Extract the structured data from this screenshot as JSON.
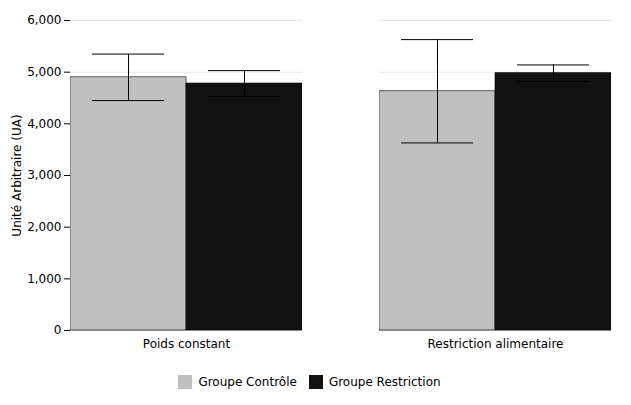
{
  "chart_data": {
    "type": "bar",
    "categories": [
      "Poids constant",
      "Restriction alimentaire"
    ],
    "series": [
      {
        "name": "Groupe Contrôle",
        "color": "#c0c0c0",
        "values": [
          4900,
          4630
        ],
        "errors": [
          450,
          1000
        ]
      },
      {
        "name": "Groupe Restriction",
        "color": "#111111",
        "values": [
          4780,
          4980
        ],
        "errors": [
          250,
          160
        ]
      }
    ],
    "ylabel": "Unité Arbitraire (UA)",
    "ylim": [
      0,
      6000
    ],
    "yticks": [
      0,
      1000,
      2000,
      3000,
      4000,
      5000,
      6000
    ],
    "grid": true,
    "legend": "bottom"
  }
}
